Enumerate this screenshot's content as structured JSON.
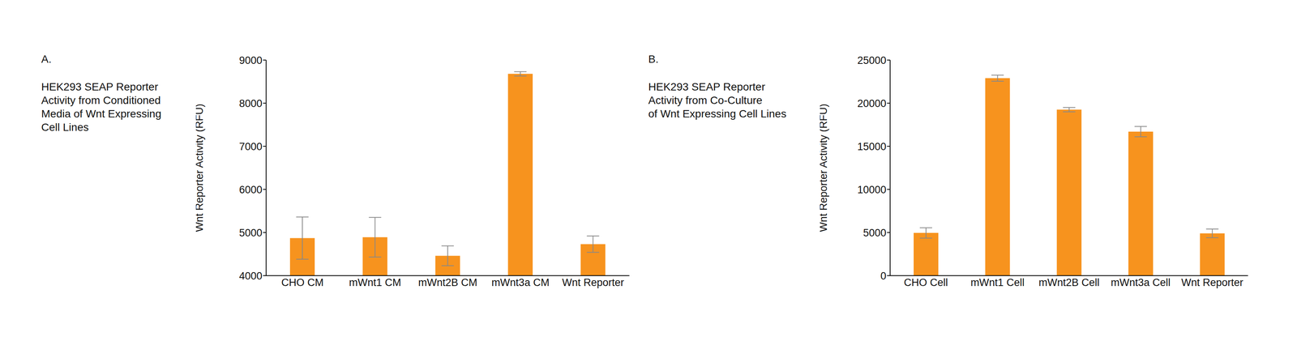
{
  "chart_data": [
    {
      "type": "bar",
      "panel": "A.",
      "title": "HEK293 SEAP Reporter\nActivity from Conditioned\nMedia of Wnt Expressing\nCell Lines",
      "y_label": "Wnt Reporter Activity (RFU)",
      "categories": [
        "CHO CM",
        "mWnt1 CM",
        "mWnt2B CM",
        "mWnt3a CM",
        "Wnt Reporter"
      ],
      "values": [
        4870,
        4890,
        4460,
        8680,
        4730
      ],
      "errors": [
        490,
        460,
        230,
        50,
        190
      ],
      "color": "#f7931e",
      "ylim": [
        4000,
        9000
      ],
      "yticks": [
        4000,
        5000,
        6000,
        7000,
        8000,
        9000
      ]
    },
    {
      "type": "bar",
      "panel": "B.",
      "title": "HEK293 SEAP Reporter\nActivity from Co-Culture\nof Wnt Expressing Cell Lines",
      "y_label": "Wnt Reporter Activity (RFU)",
      "categories": [
        "CHO Cell",
        "mWnt1 Cell",
        "mWnt2B Cell",
        "mWnt3a Cell",
        "Wnt Reporter"
      ],
      "values": [
        4950,
        22900,
        19250,
        16700,
        4900
      ],
      "errors": [
        600,
        350,
        250,
        600,
        500
      ],
      "color": "#f7931e",
      "ylim": [
        0,
        25000
      ],
      "yticks": [
        0,
        5000,
        10000,
        15000,
        20000,
        25000
      ]
    }
  ]
}
